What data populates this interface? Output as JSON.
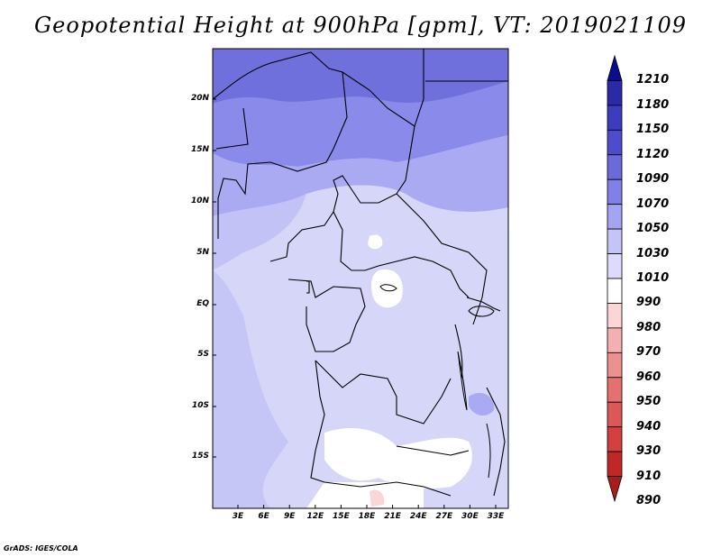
{
  "title": "Geopotential Height at 900hPa [gpm], VT: 2019021109",
  "credit": "GrADS: IGES/COLA",
  "map": {
    "lat_labels": [
      "20N",
      "15N",
      "10N",
      "5N",
      "EQ",
      "5S",
      "10S",
      "15S"
    ],
    "lon_labels": [
      "3E",
      "6E",
      "9E",
      "12E",
      "15E",
      "18E",
      "21E",
      "24E",
      "27E",
      "30E",
      "33E"
    ]
  },
  "colorbar": {
    "levels": [
      "1210",
      "1180",
      "1150",
      "1120",
      "1090",
      "1070",
      "1050",
      "1030",
      "1010",
      "990",
      "980",
      "970",
      "960",
      "950",
      "940",
      "930",
      "910",
      "890"
    ],
    "colors": [
      "#0c0c8e",
      "#2a2aa8",
      "#3c3cbe",
      "#4c4ccc",
      "#6a6ad8",
      "#8080e6",
      "#a4a4f2",
      "#c4c4f7",
      "#dcdcfa",
      "#ffffff",
      "#fbd6d6",
      "#f4b0b0",
      "#ec9090",
      "#e47070",
      "#dc5858",
      "#d24040",
      "#c02828",
      "#a81c1c"
    ]
  }
}
